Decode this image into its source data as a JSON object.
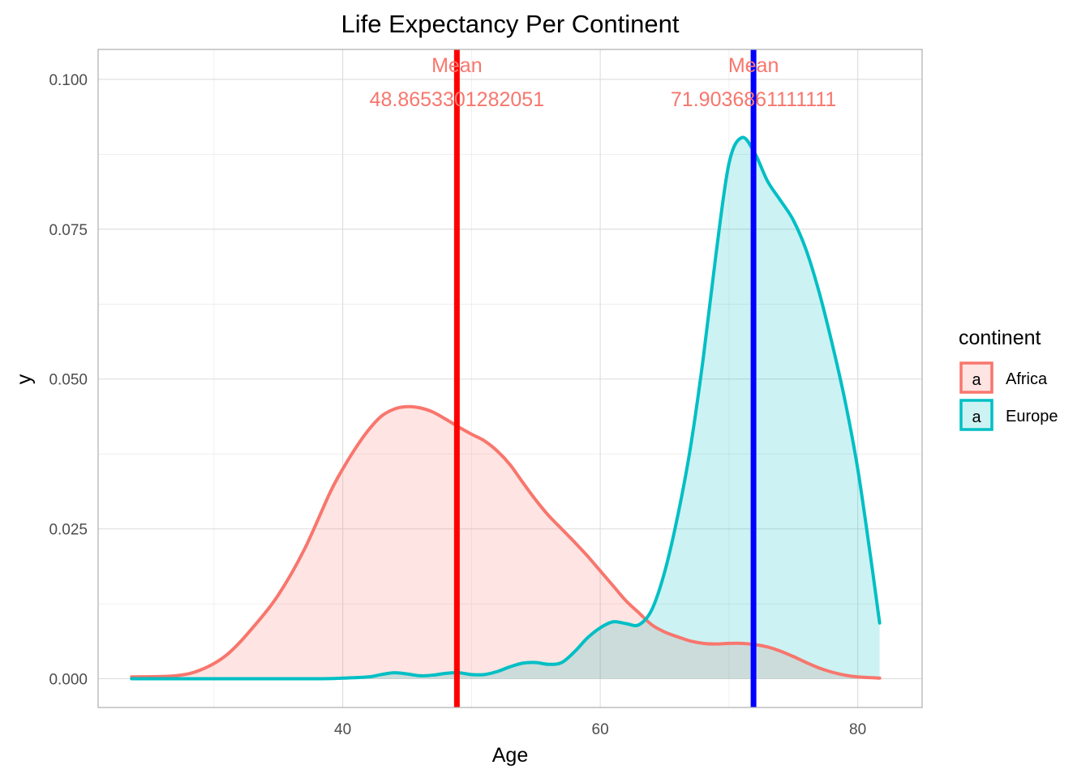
{
  "chart_data": {
    "type": "area",
    "title": "Life Expectancy Per Continent",
    "xlabel": "Age",
    "ylabel": "y",
    "xlim": [
      21,
      85
    ],
    "ylim": [
      -0.0048,
      0.105
    ],
    "x_ticks": [
      40,
      60,
      80
    ],
    "x_tick_labels": [
      "40",
      "60",
      "80"
    ],
    "y_ticks": [
      0,
      0.025,
      0.05,
      0.075,
      0.1
    ],
    "y_tick_labels": [
      "0.000",
      "0.025",
      "0.050",
      "0.075",
      "0.100"
    ],
    "grid": true,
    "legend": {
      "title": "continent",
      "position": "right",
      "key_glyph": "a"
    },
    "series": [
      {
        "name": "Africa",
        "color": "#F8766D",
        "fill": "#F8766D",
        "fill_opacity": 0.2,
        "points": [
          [
            23.6,
            0.0003
          ],
          [
            27.0,
            0.0005
          ],
          [
            29.0,
            0.0015
          ],
          [
            31.0,
            0.004
          ],
          [
            33.0,
            0.0085
          ],
          [
            35.0,
            0.014
          ],
          [
            37.0,
            0.0215
          ],
          [
            39.0,
            0.031
          ],
          [
            40.0,
            0.035
          ],
          [
            41.0,
            0.0385
          ],
          [
            42.0,
            0.0415
          ],
          [
            43.0,
            0.0438
          ],
          [
            44.0,
            0.045
          ],
          [
            45.0,
            0.0454
          ],
          [
            46.0,
            0.0452
          ],
          [
            47.0,
            0.0445
          ],
          [
            48.0,
            0.0433
          ],
          [
            49.0,
            0.042
          ],
          [
            50.0,
            0.0408
          ],
          [
            51.0,
            0.0397
          ],
          [
            52.0,
            0.038
          ],
          [
            53.0,
            0.0357
          ],
          [
            54.0,
            0.0327
          ],
          [
            55.0,
            0.0298
          ],
          [
            56.0,
            0.0272
          ],
          [
            57.0,
            0.025
          ],
          [
            58.0,
            0.0228
          ],
          [
            59.0,
            0.0205
          ],
          [
            60.0,
            0.018
          ],
          [
            61.0,
            0.0155
          ],
          [
            62.0,
            0.013
          ],
          [
            63.0,
            0.011
          ],
          [
            64.0,
            0.009
          ],
          [
            65.0,
            0.0078
          ],
          [
            66.0,
            0.007
          ],
          [
            67.0,
            0.0063
          ],
          [
            68.0,
            0.0059
          ],
          [
            69.0,
            0.0058
          ],
          [
            70.0,
            0.0059
          ],
          [
            71.0,
            0.0059
          ],
          [
            72.0,
            0.0057
          ],
          [
            73.0,
            0.0053
          ],
          [
            74.0,
            0.0046
          ],
          [
            75.0,
            0.0037
          ],
          [
            76.0,
            0.0027
          ],
          [
            77.0,
            0.0018
          ],
          [
            78.0,
            0.0011
          ],
          [
            79.0,
            0.0006
          ],
          [
            80.0,
            0.0003
          ],
          [
            81.7,
            0.0001
          ]
        ]
      },
      {
        "name": "Europe",
        "color": "#00BFC4",
        "fill": "#00BFC4",
        "fill_opacity": 0.2,
        "points": [
          [
            23.6,
            0.0
          ],
          [
            33.0,
            0.0
          ],
          [
            38.0,
            0.0
          ],
          [
            40.0,
            0.0001
          ],
          [
            42.0,
            0.0003
          ],
          [
            43.0,
            0.0007
          ],
          [
            44.0,
            0.001
          ],
          [
            45.0,
            0.0008
          ],
          [
            46.0,
            0.0005
          ],
          [
            47.0,
            0.0006
          ],
          [
            48.0,
            0.0009
          ],
          [
            49.0,
            0.001
          ],
          [
            50.0,
            0.0007
          ],
          [
            51.0,
            0.0007
          ],
          [
            52.0,
            0.0012
          ],
          [
            53.0,
            0.002
          ],
          [
            54.0,
            0.0026
          ],
          [
            55.0,
            0.0027
          ],
          [
            56.0,
            0.0024
          ],
          [
            57.0,
            0.0027
          ],
          [
            58.0,
            0.0045
          ],
          [
            59.0,
            0.0068
          ],
          [
            60.0,
            0.0085
          ],
          [
            61.0,
            0.0095
          ],
          [
            62.0,
            0.0092
          ],
          [
            63.0,
            0.009
          ],
          [
            64.0,
            0.0115
          ],
          [
            65.0,
            0.0178
          ],
          [
            66.0,
            0.027
          ],
          [
            67.0,
            0.0385
          ],
          [
            68.0,
            0.0535
          ],
          [
            69.0,
            0.071
          ],
          [
            70.0,
            0.086
          ],
          [
            71.0,
            0.0903
          ],
          [
            72.0,
            0.0877
          ],
          [
            73.0,
            0.083
          ],
          [
            74.0,
            0.0798
          ],
          [
            75.0,
            0.0765
          ],
          [
            76.0,
            0.0715
          ],
          [
            77.0,
            0.0645
          ],
          [
            78.0,
            0.056
          ],
          [
            79.0,
            0.0465
          ],
          [
            80.0,
            0.035
          ],
          [
            81.0,
            0.0203
          ],
          [
            81.7,
            0.0093
          ]
        ]
      }
    ],
    "vlines": [
      {
        "x": 48.8653301282051,
        "color": "#FF0000"
      },
      {
        "x": 71.9036861111111,
        "color": "#0000FF"
      }
    ],
    "annotations": [
      {
        "x": 48.8653301282051,
        "label": "Mean",
        "value": "48.8653301282051",
        "color": "#F8766D"
      },
      {
        "x": 71.9036861111111,
        "label": "Mean",
        "value": "71.9036861111111",
        "color": "#F8766D"
      }
    ]
  }
}
